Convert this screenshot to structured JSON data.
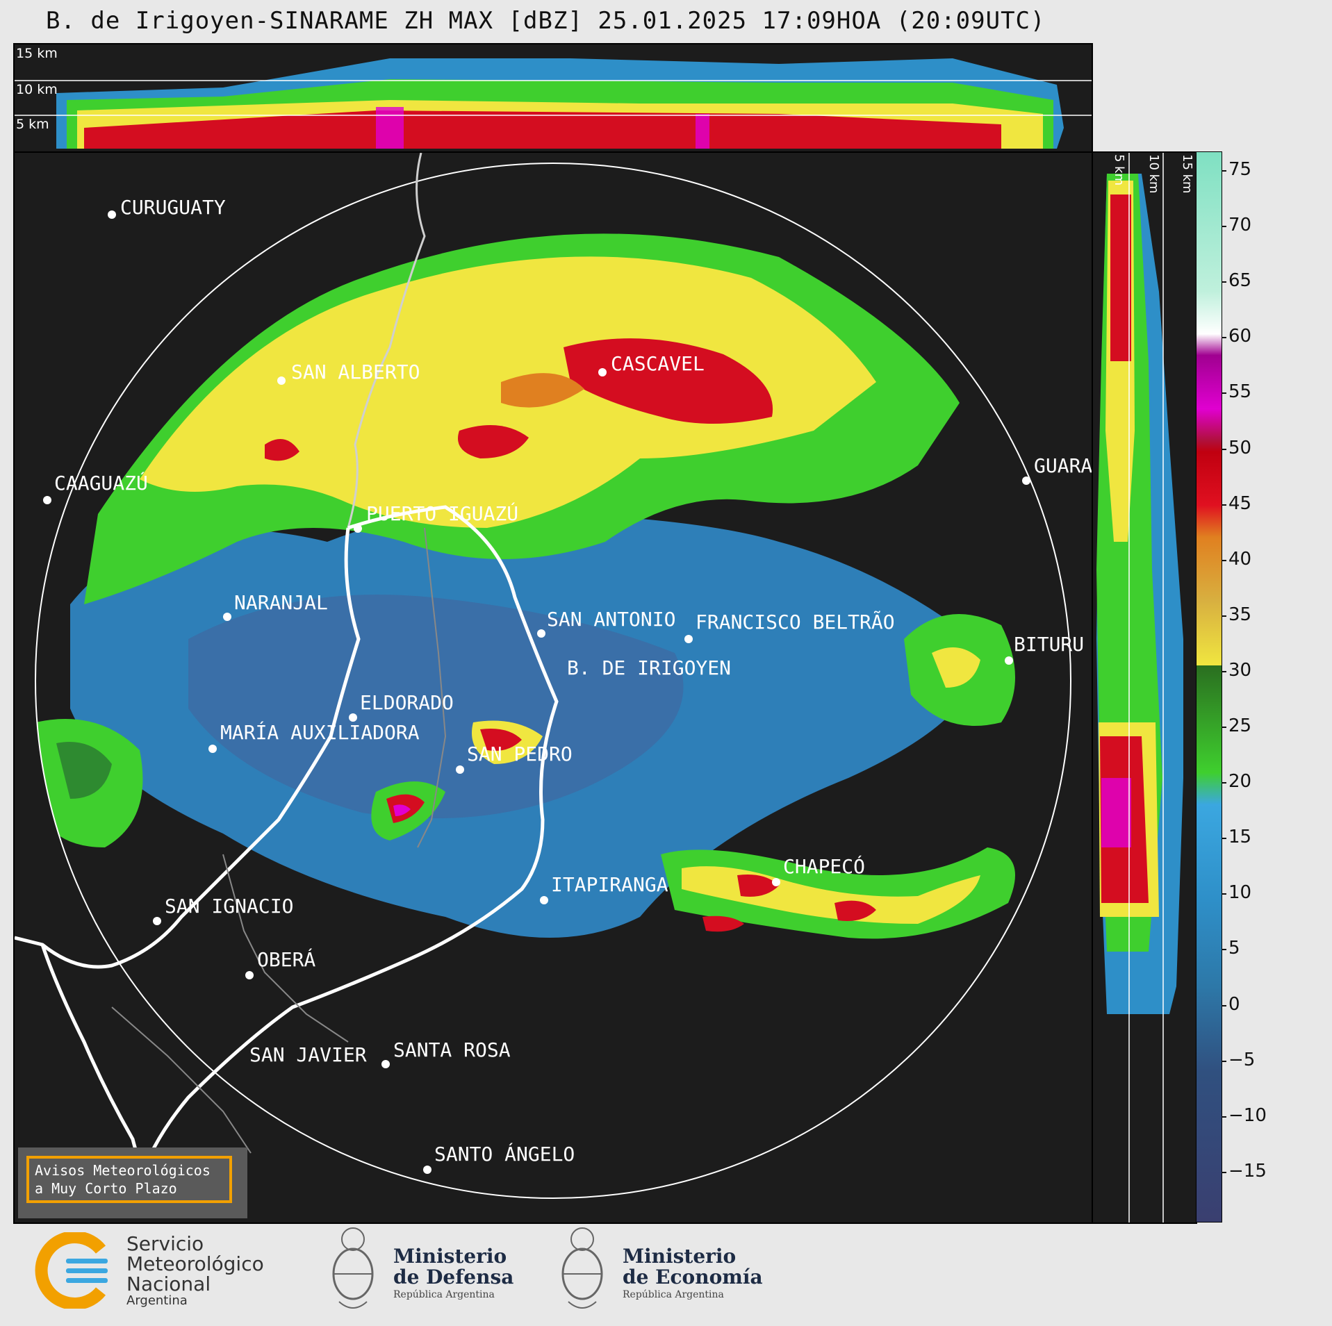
{
  "title": "B. de Irigoyen-SINARAME ZH MAX [dBZ] 25.01.2025 17:09HOA (20:09UTC)",
  "top_panel": {
    "km_labels": [
      "15 km",
      "10 km",
      "5 km"
    ]
  },
  "side_panel": {
    "km_labels": [
      "5 km",
      "10 km",
      "15 km"
    ]
  },
  "cities": [
    {
      "name": "CURUGUATY"
    },
    {
      "name": "SAN ALBERTO"
    },
    {
      "name": "CASCAVEL"
    },
    {
      "name": "CAAGUAZÚ"
    },
    {
      "name": "GUARA"
    },
    {
      "name": "PUERTO IGUAZÚ"
    },
    {
      "name": "NARANJAL"
    },
    {
      "name": "SAN ANTONIO"
    },
    {
      "name": "FRANCISCO BELTRÃO"
    },
    {
      "name": "BITURU"
    },
    {
      "name": "B. DE IRIGOYEN"
    },
    {
      "name": "ELDORADO"
    },
    {
      "name": "MARÍA AUXILIADORA"
    },
    {
      "name": "SAN PEDRO"
    },
    {
      "name": "CHAPECÓ"
    },
    {
      "name": "ITAPIRANGA"
    },
    {
      "name": "SAN IGNACIO"
    },
    {
      "name": "OBERÁ"
    },
    {
      "name": "SAN JAVIER"
    },
    {
      "name": "SANTA ROSA"
    },
    {
      "name": "SANTO ÁNGELO"
    }
  ],
  "colorbar": {
    "unit": "dBZ",
    "ticks": [
      "75",
      "70",
      "65",
      "60",
      "55",
      "50",
      "45",
      "40",
      "35",
      "30",
      "25",
      "20",
      "15",
      "10",
      "5",
      "0",
      "−5",
      "−10",
      "−15"
    ],
    "colors": {
      "blue": "#2e8fc8",
      "green": "#3fcf2e",
      "yellow": "#f0e640",
      "red": "#d40d20",
      "magenta": "#e000d0",
      "white": "#ffffff",
      "teal": "#6fd7b0"
    }
  },
  "avisos": {
    "line1": "Avisos Meteorológicos",
    "line2": "a Muy Corto Plazo"
  },
  "footer": {
    "smn": {
      "line1": "Servicio",
      "line2": "Meteorológico",
      "line3": "Nacional",
      "line4": "Argentina"
    },
    "defensa": {
      "line1": "Ministerio",
      "line2": "de Defensa",
      "line3": "República Argentina"
    },
    "economia": {
      "line1": "Ministerio",
      "line2": "de Economía",
      "line3": "República Argentina"
    }
  }
}
